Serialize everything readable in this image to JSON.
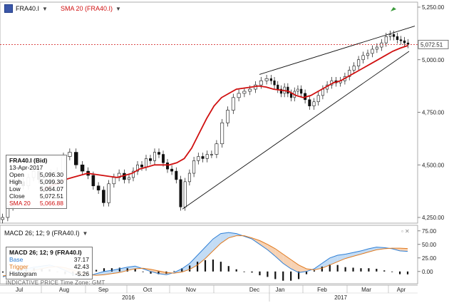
{
  "header": {
    "symbol": "FRA40.I",
    "sma_label": "SMA 20 (FRA40.I)"
  },
  "info_box": {
    "title": "FRA40.I (Bid)",
    "date": "13-Apr-2017",
    "rows": [
      {
        "label": "Open",
        "value": "5,096.30"
      },
      {
        "label": "High",
        "value": "5,099.30"
      },
      {
        "label": "Low",
        "value": "5,064.07"
      },
      {
        "label": "Close",
        "value": "5,072.51"
      },
      {
        "label": "SMA 20",
        "value": "5,066.88"
      }
    ]
  },
  "macd_header": "MACD 26; 12; 9 (FRA40.I)",
  "macd_box": {
    "title": "MACD 26; 12; 9 (FRA40.I)",
    "rows": [
      {
        "label": "Base",
        "value": "37.17"
      },
      {
        "label": "Trigger",
        "value": "42.43"
      },
      {
        "label": "Histogram",
        "value": "-5.26"
      }
    ]
  },
  "timezone": "INDICATIVE PRICE   Time Zone: GMT",
  "colors": {
    "up": "#111111",
    "down": "#111111",
    "sma": "#d01010",
    "macd_base": "#2e7fd6",
    "macd_trigger": "#e07a1f",
    "price_line": "#d01010"
  },
  "chart_data": [
    {
      "type": "candlestick",
      "x": [
        "Jul",
        "Aug",
        "Sep",
        "Oct",
        "Nov",
        "Dec",
        "Jan",
        "Feb",
        "Mar",
        "Apr"
      ],
      "years": [
        "2016",
        "2017"
      ],
      "y_ticks": [
        "4,250.00",
        "4,500.00",
        "4,750.00",
        "5,000.00",
        "5,250.00"
      ],
      "ylim": [
        4250,
        5250
      ],
      "last_price_label": "5,072.51",
      "monthly": [
        {
          "month": "Jul",
          "values": [
            4250,
            4300,
            4380,
            4420,
            4400,
            4440,
            4470,
            4430
          ]
        },
        {
          "month": "Aug",
          "values": [
            4440,
            4460,
            4470,
            4540,
            4560,
            4500,
            4470
          ]
        },
        {
          "month": "Sep",
          "values": [
            4450,
            4400,
            4380,
            4320,
            4410,
            4440,
            4460,
            4430
          ]
        },
        {
          "month": "Oct",
          "values": [
            4440,
            4470,
            4500,
            4490,
            4530,
            4520,
            4560,
            4550,
            4510,
            4480
          ]
        },
        {
          "month": "Nov",
          "values": [
            4470,
            4430,
            4300,
            4420,
            4460,
            4520,
            4540,
            4530,
            4550,
            4550
          ]
        },
        {
          "month": "Dec",
          "values": [
            4600,
            4700,
            4760,
            4820,
            4840,
            4850,
            4860,
            4880,
            4900,
            4910
          ]
        },
        {
          "month": "Jan",
          "values": [
            4900,
            4880,
            4860,
            4840,
            4870,
            4840,
            4820,
            4850,
            4860,
            4840
          ]
        },
        {
          "month": "Feb",
          "values": [
            4810,
            4780,
            4800,
            4830,
            4860,
            4880,
            4900,
            4890,
            4900,
            4920
          ]
        },
        {
          "month": "Mar",
          "values": [
            4950,
            4970,
            5000,
            5020,
            5030,
            5050,
            5060,
            5080,
            5110
          ]
        },
        {
          "month": "Apr",
          "values": [
            5120,
            5110,
            5095,
            5090,
            5080,
            5072.51
          ]
        }
      ],
      "sma": [
        4380,
        4400,
        4410,
        4430,
        4440,
        4450,
        4460,
        4455,
        4450,
        4445,
        4440,
        4450,
        4460,
        4480,
        4490,
        4500,
        4500,
        4500,
        4510,
        4530,
        4580,
        4650,
        4720,
        4780,
        4820,
        4840,
        4860,
        4865,
        4870,
        4875,
        4870,
        4860,
        4855,
        4850,
        4830,
        4820,
        4830,
        4850,
        4870,
        4890,
        4900,
        4920,
        4940,
        4960,
        4980,
        5000,
        5020,
        5040,
        5055,
        5066.88
      ],
      "trendlines": [
        {
          "from": [
            "Nov",
            4290
          ],
          "to": [
            "Apr",
            5040
          ]
        },
        {
          "from": [
            "Dec",
            4930
          ],
          "to": [
            "Apr",
            5160
          ]
        }
      ]
    },
    {
      "type": "line",
      "title": "MACD 26; 12; 9 (FRA40.I)",
      "y_ticks": [
        "0.00",
        "25.00",
        "50.00",
        "75.00"
      ],
      "ylim": [
        -20,
        80
      ],
      "series": [
        {
          "name": "Base",
          "values": [
            -10,
            -5,
            0,
            5,
            8,
            10,
            12,
            8,
            2,
            -5,
            -10,
            -8,
            -4,
            0,
            2,
            5,
            8,
            10,
            5,
            0,
            -4,
            -6,
            -2,
            5,
            15,
            30,
            45,
            60,
            70,
            72,
            70,
            65,
            60,
            50,
            40,
            28,
            15,
            5,
            -2,
            0,
            5,
            15,
            25,
            30,
            32,
            35,
            38,
            42,
            45,
            44,
            42,
            38,
            37.17
          ]
        },
        {
          "name": "Trigger",
          "values": [
            -8,
            -7,
            -5,
            -2,
            2,
            5,
            8,
            9,
            7,
            3,
            -2,
            -6,
            -7,
            -6,
            -4,
            -2,
            2,
            5,
            6,
            4,
            1,
            -2,
            -3,
            -1,
            4,
            12,
            24,
            38,
            52,
            62,
            66,
            66,
            62,
            57,
            50,
            42,
            32,
            22,
            12,
            5,
            3,
            6,
            12,
            18,
            24,
            28,
            32,
            36,
            40,
            42,
            43,
            43,
            42.43
          ]
        },
        {
          "name": "Histogram",
          "values": [
            -2,
            2,
            5,
            7,
            6,
            5,
            4,
            -1,
            -5,
            -8,
            -8,
            -2,
            3,
            6,
            6,
            7,
            6,
            5,
            -1,
            -4,
            -5,
            -4,
            1,
            6,
            11,
            18,
            21,
            22,
            18,
            10,
            4,
            -1,
            -2,
            -7,
            -10,
            -14,
            -17,
            -17,
            -14,
            -5,
            2,
            9,
            13,
            12,
            8,
            7,
            6,
            6,
            5,
            2,
            -1,
            -5,
            -5.26
          ]
        }
      ]
    }
  ]
}
